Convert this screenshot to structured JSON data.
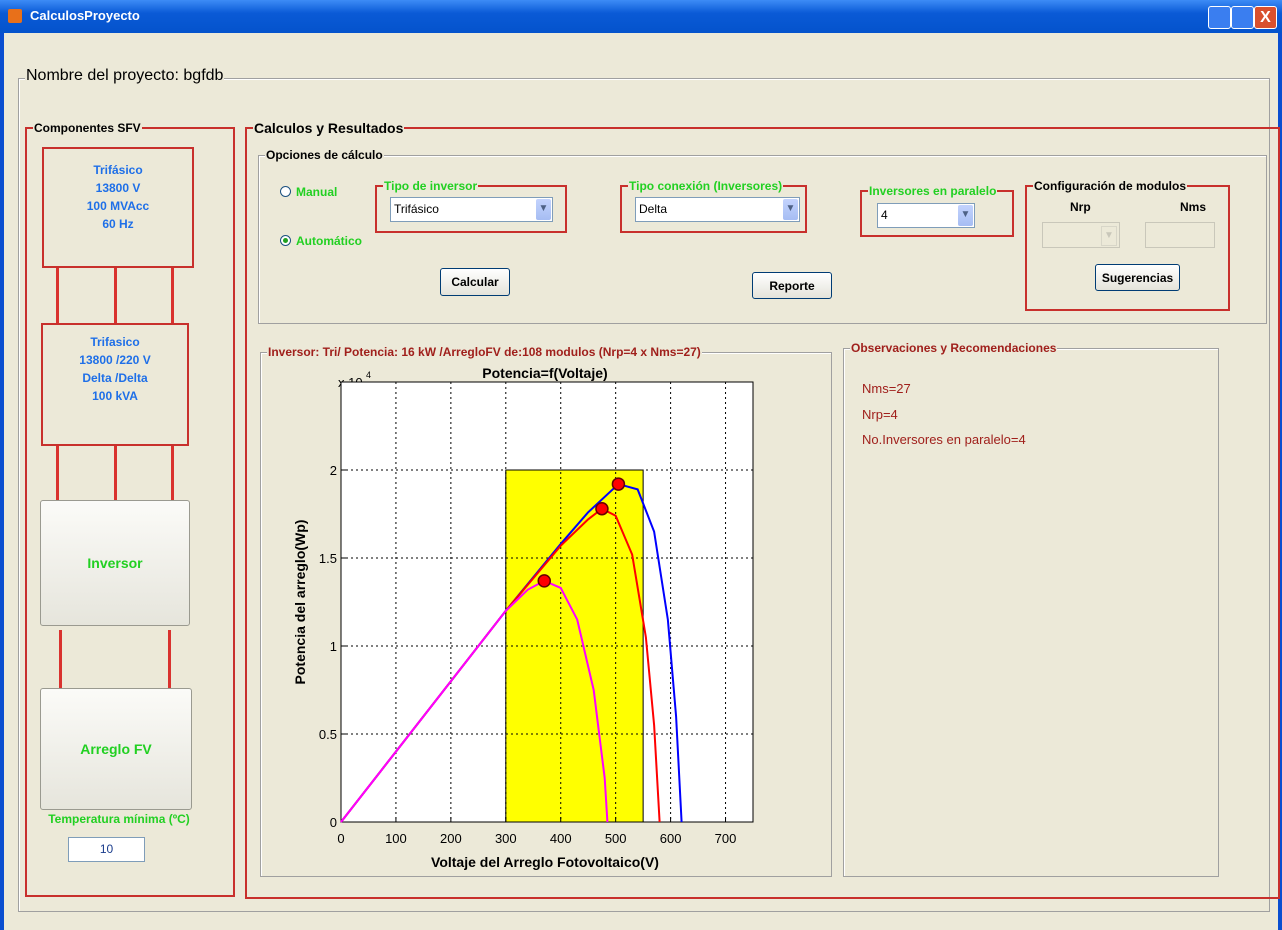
{
  "window": {
    "title": "CalculosProyecto"
  },
  "project": {
    "label": "Nombre del proyecto: bgfdb"
  },
  "components": {
    "title": "Componentes SFV",
    "source": [
      "Trifásico",
      "13800 V",
      "100 MVAcc",
      "60 Hz"
    ],
    "transformer": [
      "Trifasico",
      "13800 /220 V",
      "Delta /Delta",
      "100 kVA"
    ],
    "inverter": "Inversor",
    "array": "Arreglo FV",
    "temp_label": "Temperatura mínima (ºC)",
    "temp_value": "10"
  },
  "results": {
    "title": "Calculos y Resultados",
    "options": {
      "title": "Opciones de cálculo",
      "manual": "Manual",
      "automatic": "Automático",
      "inverter_type": {
        "title": "Tipo de inversor",
        "value": "Trifásico"
      },
      "connection": {
        "title": "Tipo conexión (Inversores)",
        "value": "Delta"
      },
      "parallel": {
        "title": "Inversores en paralelo",
        "value": "4"
      },
      "modules": {
        "title": "Configuración de modulos",
        "nrp": "Nrp",
        "nms": "Nms",
        "suggest": "Sugerencias"
      },
      "calculate": "Calcular",
      "report": "Reporte"
    },
    "plot_frame": "Inversor: Tri/ Potencia: 16 kW /ArregloFV de:108 modulos (Nrp=4 x Nms=27)",
    "observations": {
      "title": "Observaciones y Recomendaciones",
      "lines": [
        "Nms=27",
        "Nrp=4",
        "No.Inversores en paralelo=4"
      ]
    }
  },
  "chart_data": {
    "type": "line",
    "title": "Potencia=f(Voltaje)",
    "x_label": "Voltaje del Arreglo Fotovoltaico(V)",
    "y_label": "Potencia del arreglo(Wp)",
    "y_exponent_label": "x 10",
    "y_exponent": 4,
    "xlim": [
      0,
      750
    ],
    "xticks": [
      0,
      100,
      200,
      300,
      400,
      500,
      600,
      700
    ],
    "ylim": [
      0,
      2.5
    ],
    "yticks": [
      0,
      0.5,
      1,
      1.5,
      2
    ],
    "grid": true,
    "highlight": {
      "color": "#ffff00",
      "x": [
        300,
        550
      ],
      "y": [
        0,
        2
      ]
    },
    "series": [
      {
        "color": "#0000ff",
        "x": [
          0,
          100,
          200,
          300,
          400,
          450,
          505,
          540,
          570,
          595,
          610,
          620
        ],
        "values": [
          0,
          0.4,
          0.8,
          1.2,
          1.58,
          1.76,
          1.92,
          1.89,
          1.65,
          1.15,
          0.6,
          0
        ]
      },
      {
        "color": "#ff0000",
        "x": [
          0,
          100,
          200,
          300,
          400,
          450,
          475,
          500,
          530,
          555,
          570,
          580
        ],
        "values": [
          0,
          0.4,
          0.8,
          1.2,
          1.57,
          1.72,
          1.78,
          1.74,
          1.52,
          1.05,
          0.55,
          0
        ]
      },
      {
        "color": "#ff00ff",
        "x": [
          0,
          100,
          200,
          300,
          340,
          370,
          400,
          430,
          460,
          480,
          485
        ],
        "values": [
          0,
          0.4,
          0.8,
          1.2,
          1.32,
          1.37,
          1.33,
          1.15,
          0.75,
          0.25,
          0
        ]
      }
    ],
    "markers": {
      "color": "#ff0000",
      "x": [
        370,
        475,
        505
      ],
      "values": [
        1.37,
        1.78,
        1.92
      ]
    }
  }
}
